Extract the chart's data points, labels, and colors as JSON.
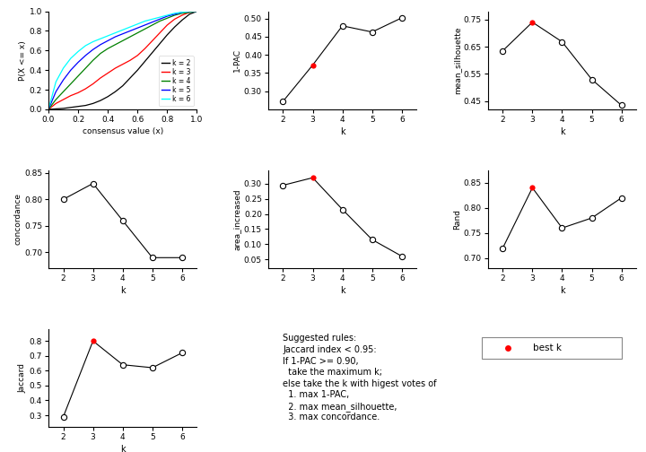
{
  "ecdf": {
    "k2": {
      "x": [
        0.0,
        0.05,
        0.1,
        0.15,
        0.2,
        0.25,
        0.3,
        0.35,
        0.4,
        0.45,
        0.5,
        0.55,
        0.6,
        0.65,
        0.7,
        0.75,
        0.8,
        0.85,
        0.9,
        0.95,
        1.0
      ],
      "y": [
        0.0,
        0.005,
        0.01,
        0.02,
        0.03,
        0.04,
        0.06,
        0.09,
        0.13,
        0.18,
        0.24,
        0.32,
        0.4,
        0.49,
        0.58,
        0.67,
        0.76,
        0.84,
        0.91,
        0.97,
        1.0
      ]
    },
    "k3": {
      "x": [
        0.0,
        0.05,
        0.1,
        0.15,
        0.2,
        0.25,
        0.3,
        0.35,
        0.4,
        0.45,
        0.5,
        0.55,
        0.6,
        0.65,
        0.7,
        0.75,
        0.8,
        0.85,
        0.9,
        0.95,
        1.0
      ],
      "y": [
        0.0,
        0.06,
        0.1,
        0.14,
        0.17,
        0.21,
        0.26,
        0.32,
        0.37,
        0.42,
        0.46,
        0.5,
        0.55,
        0.62,
        0.7,
        0.78,
        0.86,
        0.92,
        0.96,
        0.99,
        1.0
      ]
    },
    "k4": {
      "x": [
        0.0,
        0.05,
        0.1,
        0.15,
        0.2,
        0.25,
        0.3,
        0.35,
        0.4,
        0.45,
        0.5,
        0.55,
        0.6,
        0.65,
        0.7,
        0.75,
        0.8,
        0.85,
        0.9,
        0.95,
        1.0
      ],
      "y": [
        0.0,
        0.1,
        0.18,
        0.26,
        0.34,
        0.42,
        0.5,
        0.57,
        0.62,
        0.66,
        0.7,
        0.74,
        0.78,
        0.82,
        0.86,
        0.9,
        0.93,
        0.96,
        0.98,
        0.99,
        1.0
      ]
    },
    "k5": {
      "x": [
        0.0,
        0.05,
        0.1,
        0.15,
        0.2,
        0.25,
        0.3,
        0.35,
        0.4,
        0.45,
        0.5,
        0.55,
        0.6,
        0.65,
        0.7,
        0.75,
        0.8,
        0.85,
        0.9,
        0.95,
        1.0
      ],
      "y": [
        0.0,
        0.18,
        0.3,
        0.4,
        0.48,
        0.55,
        0.61,
        0.66,
        0.7,
        0.74,
        0.77,
        0.8,
        0.83,
        0.86,
        0.89,
        0.92,
        0.95,
        0.97,
        0.99,
        1.0,
        1.0
      ]
    },
    "k6": {
      "x": [
        0.0,
        0.05,
        0.1,
        0.15,
        0.2,
        0.25,
        0.3,
        0.35,
        0.4,
        0.45,
        0.5,
        0.55,
        0.6,
        0.65,
        0.7,
        0.75,
        0.8,
        0.85,
        0.9,
        0.95,
        1.0
      ],
      "y": [
        0.0,
        0.28,
        0.42,
        0.52,
        0.59,
        0.65,
        0.69,
        0.72,
        0.75,
        0.78,
        0.81,
        0.84,
        0.87,
        0.9,
        0.92,
        0.94,
        0.96,
        0.98,
        0.99,
        1.0,
        1.0
      ]
    }
  },
  "ecdf_colors": {
    "k2": "black",
    "k3": "red",
    "k4": "green",
    "k5": "blue",
    "k6": "cyan"
  },
  "pac": {
    "k": [
      2,
      3,
      4,
      5,
      6
    ],
    "y": [
      0.272,
      0.372,
      0.48,
      0.463,
      0.502
    ],
    "best_k": 3
  },
  "silhouette": {
    "k": [
      2,
      3,
      4,
      5,
      6
    ],
    "y": [
      0.635,
      0.74,
      0.668,
      0.53,
      0.435
    ],
    "best_k": 3
  },
  "concordance": {
    "k": [
      2,
      3,
      4,
      5,
      6
    ],
    "y": [
      0.8,
      0.83,
      0.76,
      0.69,
      0.69
    ],
    "best_k": null
  },
  "area_increased": {
    "k": [
      2,
      3,
      4,
      5,
      6
    ],
    "y": [
      0.295,
      0.32,
      0.215,
      0.115,
      0.06
    ],
    "best_k": 3
  },
  "rand": {
    "k": [
      2,
      3,
      4,
      5,
      6
    ],
    "y": [
      0.72,
      0.84,
      0.76,
      0.78,
      0.82
    ],
    "best_k": 3
  },
  "jaccard": {
    "k": [
      2,
      3,
      4,
      5,
      6
    ],
    "y": [
      0.29,
      0.8,
      0.64,
      0.62,
      0.72
    ],
    "best_k": 3
  },
  "best_k_color": "#FF0000",
  "text_rules_lines": [
    "Suggested rules:",
    "Jaccard index < 0.95:",
    "If 1-PAC >= 0.90,",
    "  take the maximum k;",
    "else take the k with higest votes of",
    "  1. max 1-PAC,",
    "  2. max mean_silhouette,",
    "  3. max concordance."
  ]
}
